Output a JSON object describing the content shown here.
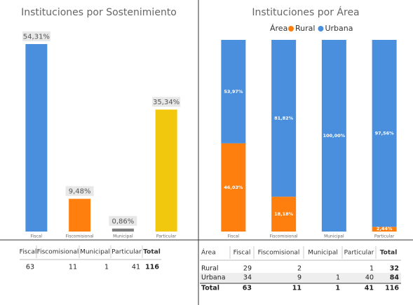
{
  "chart_data": [
    {
      "type": "bar",
      "title": "Instituciones por Sostenimiento",
      "categories": [
        "Fiscal",
        "Fiscomisional",
        "Municipal",
        "Particular"
      ],
      "values": [
        54.31,
        9.48,
        0.86,
        35.34
      ],
      "value_labels": [
        "54,31%",
        "9,48%",
        "0,86%",
        "35,34%"
      ],
      "colors": [
        "#4a8fdd",
        "#ff7f0e",
        "#7f7f7f",
        "#f2c80f"
      ]
    },
    {
      "type": "stacked_bar",
      "title": "Instituciones por Área",
      "legend_title": "Área",
      "categories": [
        "Fiscal",
        "Fiscomisional",
        "Municipal",
        "Particular"
      ],
      "series": [
        {
          "name": "Rural",
          "color": "#ff7f0e",
          "values": [
            46.03,
            18.18,
            null,
            2.44
          ],
          "value_labels": [
            "46,03%",
            "18,18%",
            null,
            "2,44%"
          ]
        },
        {
          "name": "Urbana",
          "color": "#4a8fdd",
          "values": [
            53.97,
            81.82,
            100,
            97.56
          ],
          "value_labels": [
            "53,97%",
            "81,82%",
            "100,00%",
            "97,56%"
          ]
        }
      ]
    }
  ],
  "tables": [
    {
      "headers": [
        "Fiscal",
        "Fiscomisional",
        "Municipal",
        "Particular",
        "Total"
      ],
      "rows": [
        [
          63,
          11,
          1,
          41,
          116
        ]
      ]
    },
    {
      "headers": [
        "Área",
        "Fiscal",
        "Fiscomisional",
        "Municipal",
        "Particular",
        "Total"
      ],
      "rows": [
        [
          "Rural",
          29,
          2,
          null,
          1,
          32
        ],
        [
          "Urbana",
          34,
          9,
          1,
          40,
          84
        ],
        [
          "Total",
          63,
          11,
          1,
          41,
          116
        ]
      ]
    }
  ]
}
